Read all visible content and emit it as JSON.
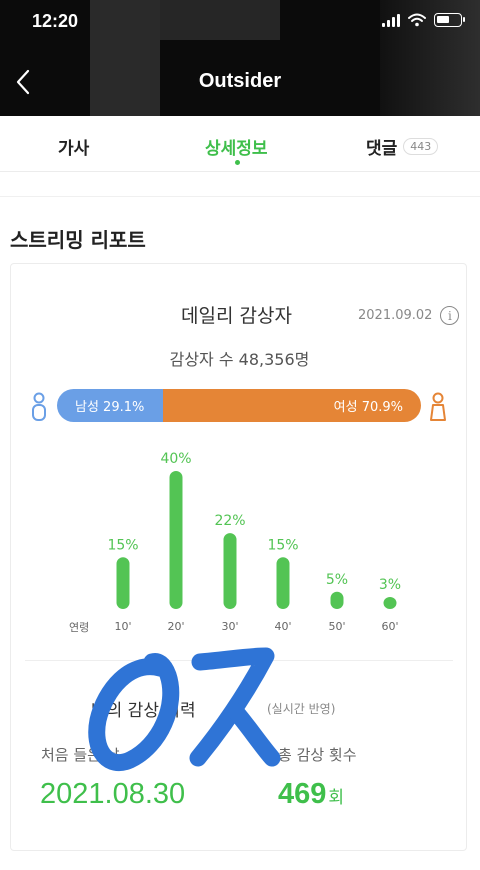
{
  "status_bar": {
    "time": "12:20"
  },
  "header": {
    "title": "Outsider"
  },
  "tabs": [
    {
      "label": "가사"
    },
    {
      "label": "상세정보"
    },
    {
      "label": "댓글",
      "count": "443"
    }
  ],
  "section": {
    "title": "스트리밍 리포트"
  },
  "report": {
    "title": "데일리 감상자",
    "date": "2021.09.02",
    "listeners_text": "감상자 수 48,356명",
    "male": {
      "label": "남성 29.1%",
      "value": 29.1
    },
    "female": {
      "label": "여성 70.9%",
      "value": 70.9
    },
    "age_axis_label": "연령"
  },
  "chart_data": {
    "type": "bar",
    "categories": [
      "10'",
      "20'",
      "30'",
      "40'",
      "50'",
      "60'"
    ],
    "values": [
      15,
      40,
      22,
      15,
      5,
      3
    ],
    "value_labels": [
      "15%",
      "40%",
      "22%",
      "15%",
      "5%",
      "3%"
    ],
    "color": "#53c454"
  },
  "my_listening": {
    "title": "나의 감상 이력",
    "realtime_note": "(실시간 반영)",
    "first_label": "처음 들은 날",
    "first_date": "2021.08.30",
    "total_label": "총 감상 횟수",
    "total_count": "469",
    "total_unit": "회"
  },
  "colors": {
    "accent": "#3fbf4b",
    "male": "#6a9fe6",
    "female": "#e58536",
    "scribble": "#2f74d6"
  }
}
